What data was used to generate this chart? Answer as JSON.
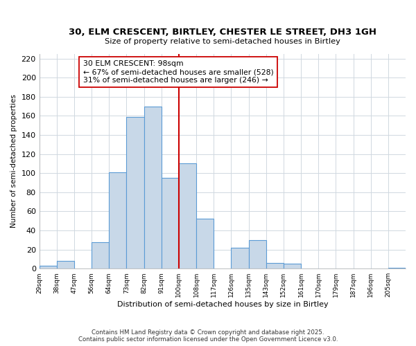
{
  "title_line1": "30, ELM CRESCENT, BIRTLEY, CHESTER LE STREET, DH3 1GH",
  "title_line2": "Size of property relative to semi-detached houses in Birtley",
  "xlabel": "Distribution of semi-detached houses by size in Birtley",
  "ylabel": "Number of semi-detached properties",
  "bin_labels": [
    "29sqm",
    "38sqm",
    "47sqm",
    "56sqm",
    "64sqm",
    "73sqm",
    "82sqm",
    "91sqm",
    "100sqm",
    "108sqm",
    "117sqm",
    "126sqm",
    "135sqm",
    "143sqm",
    "152sqm",
    "161sqm",
    "170sqm",
    "179sqm",
    "187sqm",
    "196sqm",
    "205sqm"
  ],
  "bar_heights": [
    3,
    8,
    0,
    28,
    101,
    159,
    170,
    95,
    110,
    52,
    0,
    22,
    30,
    6,
    5,
    0,
    0,
    0,
    0,
    0,
    1
  ],
  "bar_color": "#c8d8e8",
  "bar_edge_color": "#5b9bd5",
  "vline_color": "#cc0000",
  "annotation_title": "30 ELM CRESCENT: 98sqm",
  "annotation_line2": "← 67% of semi-detached houses are smaller (528)",
  "annotation_line3": "31% of semi-detached houses are larger (246) →",
  "annotation_box_color": "#ffffff",
  "annotation_box_edge": "#cc0000",
  "ylim": [
    0,
    225
  ],
  "yticks": [
    0,
    20,
    40,
    60,
    80,
    100,
    120,
    140,
    160,
    180,
    200,
    220
  ],
  "footnote1": "Contains HM Land Registry data © Crown copyright and database right 2025.",
  "footnote2": "Contains public sector information licensed under the Open Government Licence v3.0.",
  "bg_color": "#ffffff",
  "grid_color": "#d0d8e0"
}
